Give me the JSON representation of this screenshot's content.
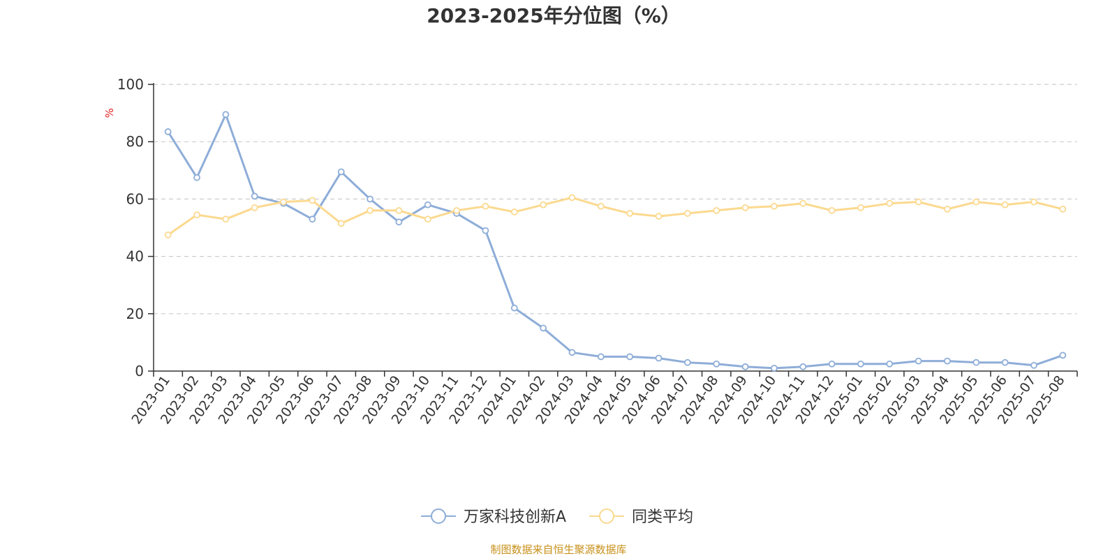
{
  "chart_data": {
    "type": "line",
    "title": "2023-2025年分位图（%）",
    "ylabel": "%",
    "ylim": [
      0,
      100
    ],
    "yticks": [
      0,
      20,
      40,
      60,
      80,
      100
    ],
    "grid": "horizontal-dashed",
    "legend_position": "bottom",
    "categories": [
      "2023-01",
      "2023-02",
      "2023-03",
      "2023-04",
      "2023-05",
      "2023-06",
      "2023-07",
      "2023-08",
      "2023-09",
      "2023-10",
      "2023-11",
      "2023-12",
      "2024-01",
      "2024-02",
      "2024-03",
      "2024-04",
      "2024-05",
      "2024-06",
      "2024-07",
      "2024-08",
      "2024-09",
      "2024-10",
      "2024-11",
      "2024-12",
      "2025-01",
      "2025-02",
      "2025-03",
      "2025-04",
      "2025-05",
      "2025-06",
      "2025-07",
      "2025-08"
    ],
    "series": [
      {
        "name": "万家科技创新A",
        "color": "#8eadd8",
        "values": [
          83.5,
          67.5,
          89.5,
          61,
          58.5,
          53,
          69.5,
          60,
          52,
          58,
          55,
          49,
          22,
          15,
          6.5,
          5,
          5,
          4.5,
          3,
          2.5,
          1.5,
          1,
          1.5,
          2.5,
          2.5,
          2.5,
          3.5,
          3.5,
          3,
          3,
          2,
          5.5
        ]
      },
      {
        "name": "同类平均",
        "color": "#fbd98f",
        "values": [
          47.5,
          54.5,
          53,
          57,
          59,
          59.5,
          51.5,
          56,
          56,
          53,
          56,
          57.5,
          55.5,
          58,
          60.5,
          57.5,
          55,
          54,
          55,
          56,
          57,
          57.5,
          58.5,
          56,
          57,
          58.5,
          59,
          56.5,
          59,
          58,
          59,
          56.5
        ]
      }
    ]
  },
  "source_note": "制图数据来自恒生聚源数据库"
}
